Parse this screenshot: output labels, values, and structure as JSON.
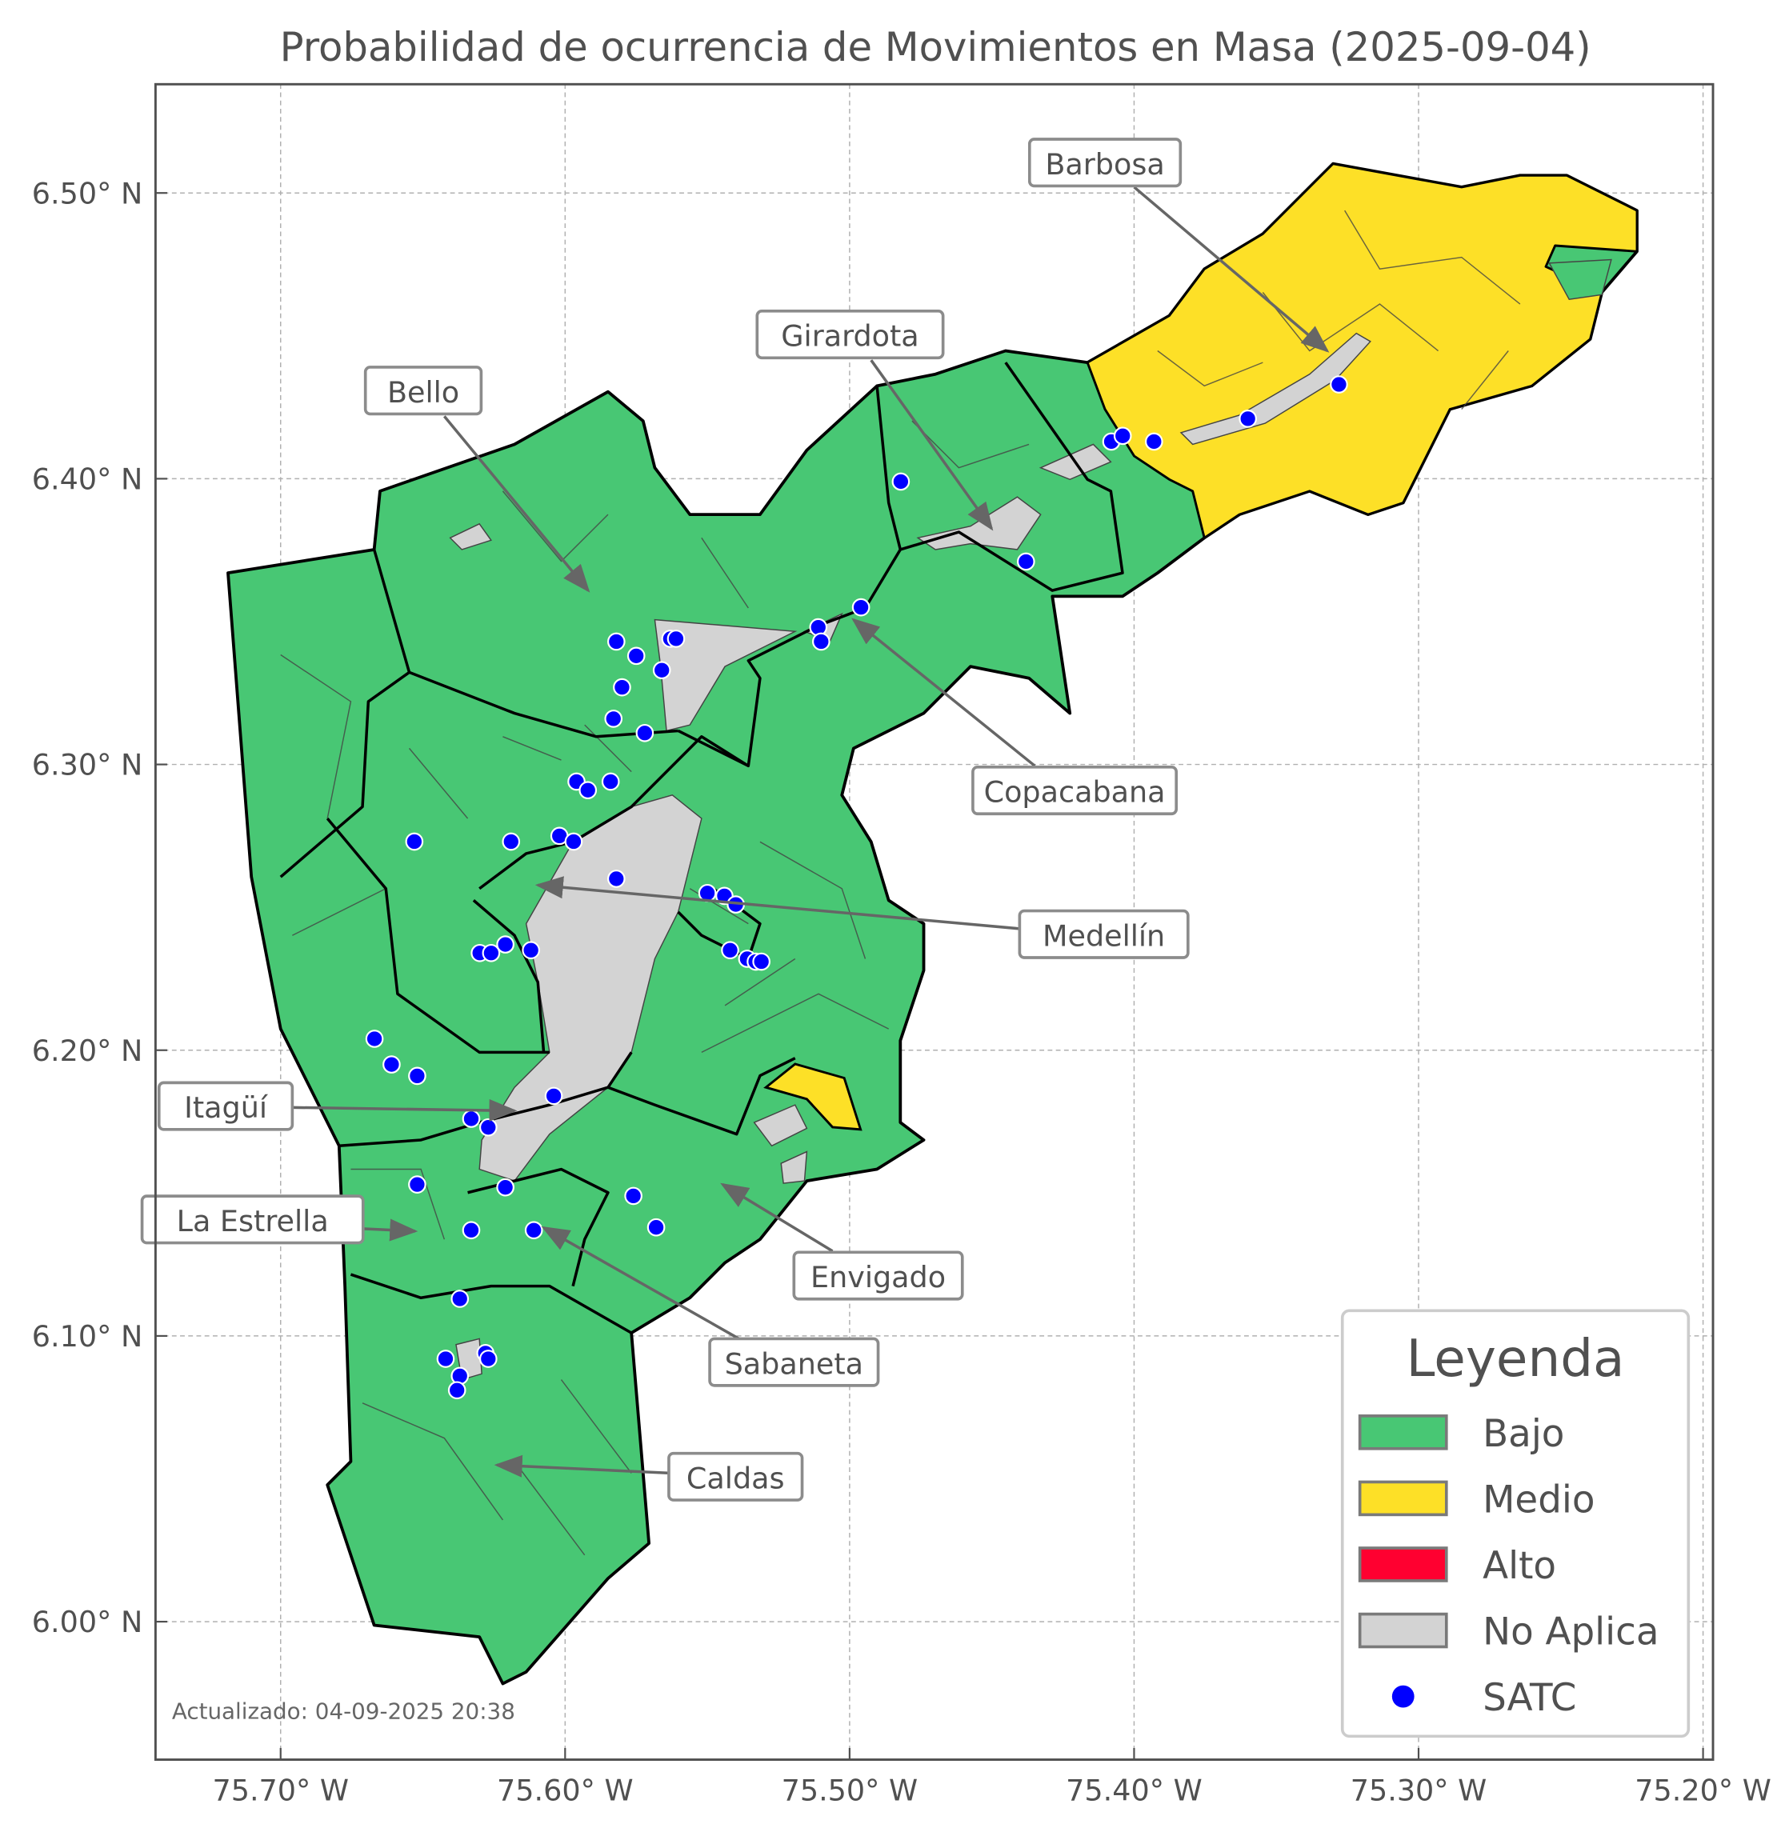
{
  "title": "Probabilidad de ocurrencia de Movimientos en Masa (2025-09-04)",
  "axes": {
    "x_ticks": [
      "75.70° W",
      "75.60° W",
      "75.50° W",
      "75.40° W",
      "75.30° W",
      "75.20° W"
    ],
    "y_ticks": [
      "6.50° N",
      "6.40° N",
      "6.30° N",
      "6.20° N",
      "6.10° N",
      "6.00° N"
    ],
    "lon_range": [
      -75.744,
      -75.196
    ],
    "lat_range": [
      5.952,
      6.538
    ],
    "grid": true
  },
  "colors": {
    "bajo": "#48c774",
    "medio": "#fde027",
    "alto": "#ff0030",
    "no_aplica": "#d3d3d3",
    "satc": "#0000ff"
  },
  "legend": {
    "title": "Leyenda",
    "placement": "lower-right",
    "items": [
      {
        "label": "Bajo",
        "color": "#48c774",
        "type": "patch"
      },
      {
        "label": "Medio",
        "color": "#fde027",
        "type": "patch"
      },
      {
        "label": "Alto",
        "color": "#ff0030",
        "type": "patch"
      },
      {
        "label": "No Aplica",
        "color": "#d3d3d3",
        "type": "patch"
      },
      {
        "label": "SATC",
        "color": "#0000ff",
        "type": "point"
      }
    ]
  },
  "municipalities": [
    {
      "name": "Barbosa",
      "level": "Medio"
    },
    {
      "name": "Girardota",
      "level": "Bajo"
    },
    {
      "name": "Bello",
      "level": "Bajo"
    },
    {
      "name": "Copacabana",
      "level": "Bajo"
    },
    {
      "name": "Medellín",
      "level": "Bajo"
    },
    {
      "name": "Itagüí",
      "level": "Bajo"
    },
    {
      "name": "La Estrella",
      "level": "Bajo"
    },
    {
      "name": "Envigado",
      "level": "Bajo"
    },
    {
      "name": "Sabaneta",
      "level": "Bajo"
    },
    {
      "name": "Caldas",
      "level": "Bajo"
    }
  ],
  "satc_points": [
    [
      -75.653,
      6.273
    ],
    [
      -75.667,
      6.204
    ],
    [
      -75.661,
      6.195
    ],
    [
      -75.652,
      6.191
    ],
    [
      -75.633,
      6.176
    ],
    [
      -75.627,
      6.173
    ],
    [
      -75.652,
      6.153
    ],
    [
      -75.621,
      6.152
    ],
    [
      -75.633,
      6.137
    ],
    [
      -75.611,
      6.137
    ],
    [
      -75.637,
      6.113
    ],
    [
      -75.642,
      6.092
    ],
    [
      -75.637,
      6.086
    ],
    [
      -75.638,
      6.081
    ],
    [
      -75.628,
      6.094
    ],
    [
      -75.627,
      6.092
    ],
    [
      -75.576,
      6.149
    ],
    [
      -75.568,
      6.138
    ],
    [
      -75.604,
      6.184
    ],
    [
      -75.63,
      6.234
    ],
    [
      -75.626,
      6.234
    ],
    [
      -75.621,
      6.237
    ],
    [
      -75.612,
      6.235
    ],
    [
      -75.619,
      6.273
    ],
    [
      -75.602,
      6.275
    ],
    [
      -75.597,
      6.273
    ],
    [
      -75.596,
      6.294
    ],
    [
      -75.592,
      6.291
    ],
    [
      -75.584,
      6.294
    ],
    [
      -75.582,
      6.26
    ],
    [
      -75.583,
      6.316
    ],
    [
      -75.58,
      6.327
    ],
    [
      -75.582,
      6.343
    ],
    [
      -75.575,
      6.338
    ],
    [
      -75.566,
      6.333
    ],
    [
      -75.563,
      6.344
    ],
    [
      -75.561,
      6.344
    ],
    [
      -75.572,
      6.311
    ],
    [
      -75.55,
      6.255
    ],
    [
      -75.544,
      6.254
    ],
    [
      -75.54,
      6.251
    ],
    [
      -75.542,
      6.235
    ],
    [
      -75.536,
      6.232
    ],
    [
      -75.533,
      6.231
    ],
    [
      -75.531,
      6.231
    ],
    [
      -75.511,
      6.348
    ],
    [
      -75.51,
      6.343
    ],
    [
      -75.496,
      6.355
    ],
    [
      -75.482,
      6.399
    ],
    [
      -75.438,
      6.371
    ],
    [
      -75.408,
      6.413
    ],
    [
      -75.404,
      6.415
    ],
    [
      -75.393,
      6.413
    ],
    [
      -75.36,
      6.421
    ],
    [
      -75.328,
      6.433
    ]
  ],
  "footer": "Actualizado: 04-09-2025 20:38"
}
